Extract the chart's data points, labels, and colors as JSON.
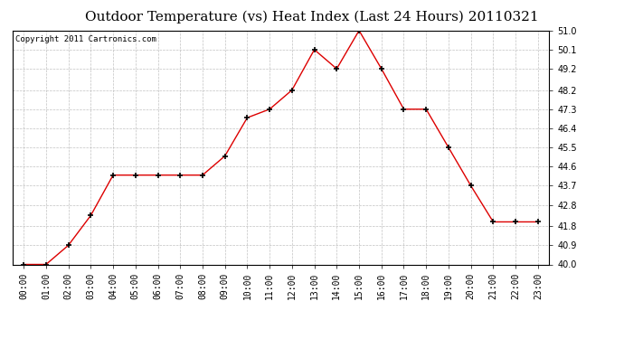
{
  "title": "Outdoor Temperature (vs) Heat Index (Last 24 Hours) 20110321",
  "copyright": "Copyright 2011 Cartronics.com",
  "x_labels": [
    "00:00",
    "01:00",
    "02:00",
    "03:00",
    "04:00",
    "05:00",
    "06:00",
    "07:00",
    "08:00",
    "09:00",
    "10:00",
    "11:00",
    "12:00",
    "13:00",
    "14:00",
    "15:00",
    "16:00",
    "17:00",
    "18:00",
    "19:00",
    "20:00",
    "21:00",
    "22:00",
    "23:00"
  ],
  "y_values": [
    40.0,
    40.0,
    40.9,
    42.3,
    44.2,
    44.2,
    44.2,
    44.2,
    44.2,
    45.1,
    46.9,
    47.3,
    48.2,
    50.1,
    49.2,
    51.0,
    49.2,
    47.3,
    47.3,
    45.5,
    43.7,
    42.0,
    42.0,
    42.0
  ],
  "line_color": "#dd0000",
  "marker": "+",
  "marker_size": 5,
  "marker_color": "#000000",
  "ylim_min": 40.0,
  "ylim_max": 51.0,
  "yticks": [
    40.0,
    40.9,
    41.8,
    42.8,
    43.7,
    44.6,
    45.5,
    46.4,
    47.3,
    48.2,
    49.2,
    50.1,
    51.0
  ],
  "background_color": "#ffffff",
  "plot_bg_color": "#ffffff",
  "grid_color": "#bbbbbb",
  "title_fontsize": 11,
  "copyright_fontsize": 6.5,
  "tick_fontsize": 7
}
